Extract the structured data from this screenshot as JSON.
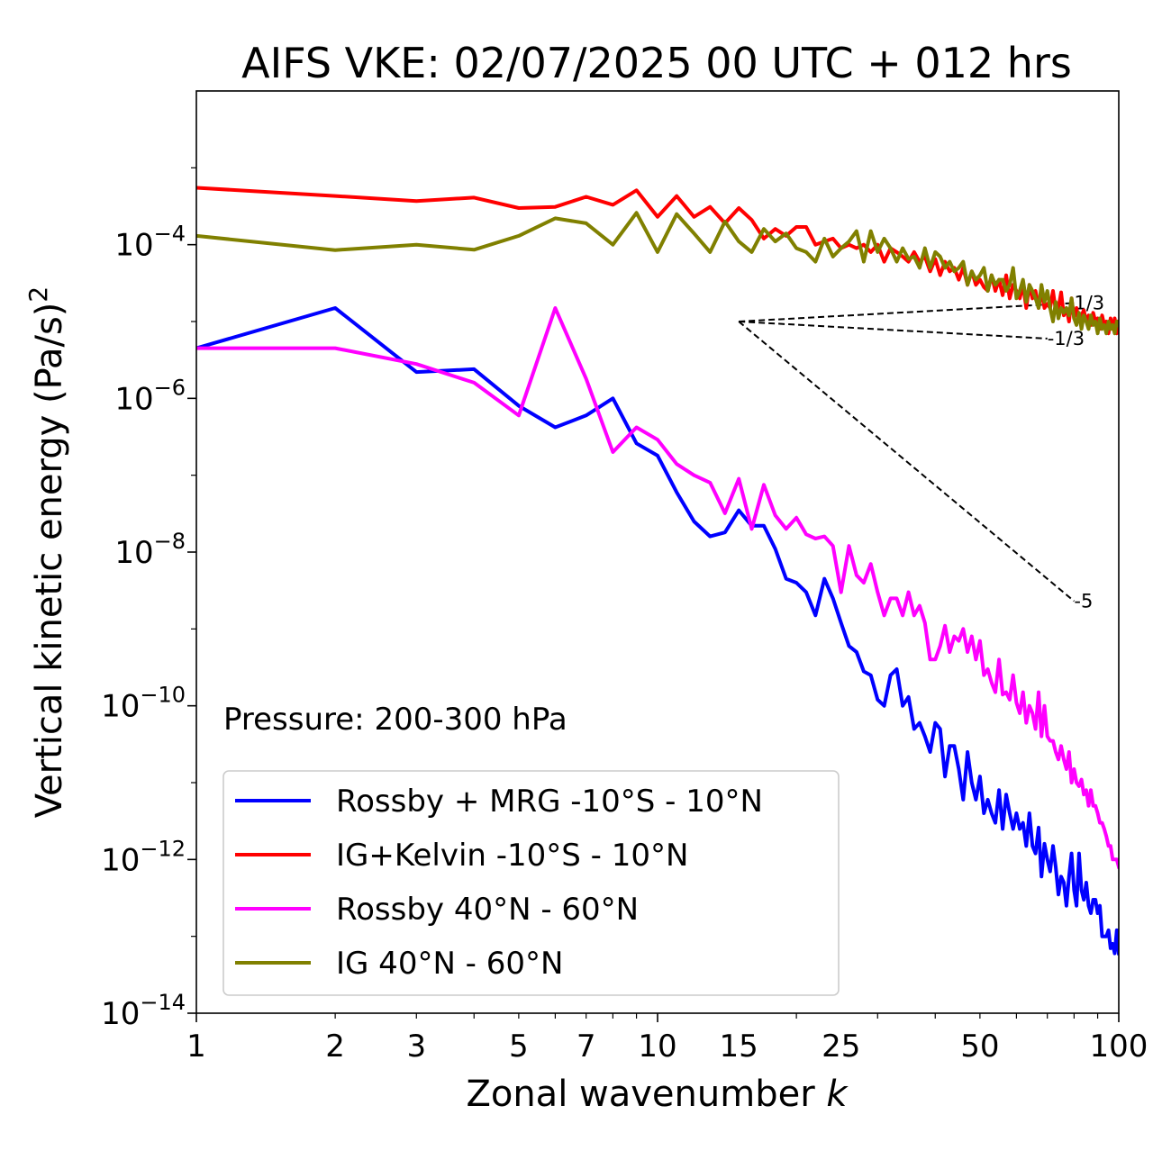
{
  "chart_data": {
    "type": "line",
    "title": "AIFS VKE: 02/07/2025 00 UTC + 012 hrs",
    "xlabel": "Zonal wavenumber k",
    "ylabel_main": "Vertical kinetic energy (Pa/s)",
    "ylabel_sup": "2",
    "xscale": "log",
    "yscale": "log",
    "xlim": [
      1,
      100
    ],
    "ylim": [
      1e-14,
      0.01
    ],
    "xticks": [
      {
        "value": 1,
        "label": "1"
      },
      {
        "value": 2,
        "label": "2"
      },
      {
        "value": 3,
        "label": "3"
      },
      {
        "value": 5,
        "label": "5"
      },
      {
        "value": 7,
        "label": "7"
      },
      {
        "value": 10,
        "label": "10"
      },
      {
        "value": 15,
        "label": "15"
      },
      {
        "value": 25,
        "label": "25"
      },
      {
        "value": 50,
        "label": "50"
      },
      {
        "value": 100,
        "label": "100"
      }
    ],
    "yticks": [
      {
        "value": 0.0001,
        "base": "10",
        "exp": "−4"
      },
      {
        "value": 1e-06,
        "base": "10",
        "exp": "−6"
      },
      {
        "value": 1e-08,
        "base": "10",
        "exp": "−8"
      },
      {
        "value": 1e-10,
        "base": "10",
        "exp": "−10"
      },
      {
        "value": 1e-12,
        "base": "10",
        "exp": "−12"
      },
      {
        "value": 1e-14,
        "base": "10",
        "exp": "−14"
      }
    ],
    "annotation": "Pressure: 200-300 hPa",
    "legend_position": "bottom-left",
    "reference_lines": [
      {
        "label": "1/3",
        "x": [
          15,
          80
        ],
        "y": [
          1e-05,
          1.74e-05
        ]
      },
      {
        "label": "-1/3",
        "x": [
          15,
          70
        ],
        "y": [
          1e-05,
          6e-06
        ]
      },
      {
        "label": "-5",
        "x": [
          15,
          80
        ],
        "y": [
          1e-05,
          2.3e-09
        ]
      }
    ],
    "series": [
      {
        "name": "Rossby + MRG -10°S - 10°N",
        "color": "#0000ff",
        "x": [
          1,
          2,
          3,
          4,
          5,
          6,
          7,
          8,
          9,
          10,
          11,
          12,
          13,
          14,
          15,
          16,
          17,
          18,
          19,
          20,
          21,
          22,
          23,
          24,
          25,
          26,
          27,
          28,
          29,
          30,
          31,
          32,
          33,
          34,
          35,
          36,
          37,
          38,
          39,
          40,
          41,
          42,
          43,
          44,
          45,
          46,
          47,
          48,
          49,
          50,
          51,
          52,
          53,
          54,
          55,
          56,
          57,
          58,
          59,
          60,
          61,
          62,
          63,
          64,
          65,
          66,
          67,
          68,
          69,
          70,
          71,
          72,
          73,
          74,
          75,
          76,
          77,
          78,
          79,
          80,
          81,
          82,
          83,
          84,
          85,
          86,
          87,
          88,
          89,
          90,
          91,
          92,
          93,
          94,
          95,
          96,
          97,
          98,
          99,
          100
        ],
        "values": [
          4.5e-06,
          1.5e-05,
          2.2e-06,
          2.4e-06,
          8e-07,
          4.2e-07,
          6e-07,
          1e-06,
          2.6e-07,
          1.8e-07,
          6e-08,
          2.5e-08,
          1.6e-08,
          1.8e-08,
          3.5e-08,
          2.2e-08,
          2.2e-08,
          1.1e-08,
          4.5e-09,
          4e-09,
          3e-09,
          1.5e-09,
          4.5e-09,
          2.5e-09,
          1.2e-09,
          6e-10,
          5e-10,
          2.8e-10,
          2.5e-10,
          1.2e-10,
          1e-10,
          2.5e-10,
          3e-10,
          1e-10,
          1.3e-10,
          5e-11,
          6e-11,
          4e-11,
          2.5e-11,
          6e-11,
          5e-11,
          1.2e-11,
          3e-11,
          3e-11,
          1.5e-11,
          6e-12,
          2.5e-11,
          1e-11,
          6e-12,
          1.2e-11,
          4e-12,
          6e-12,
          4e-12,
          3e-12,
          8e-12,
          2.5e-12,
          7e-12,
          4e-12,
          2.5e-12,
          4e-12,
          2.5e-12,
          3e-12,
          1.5e-12,
          4e-12,
          1.5e-12,
          1.2e-12,
          2.6e-12,
          6e-13,
          1.6e-12,
          1e-12,
          7e-13,
          1.5e-12,
          8e-13,
          3.5e-13,
          6e-13,
          5e-13,
          2.5e-13,
          6e-13,
          1.2e-12,
          4e-13,
          2.5e-13,
          1.2e-12,
          4e-13,
          3e-13,
          5e-13,
          2.5e-13,
          2e-13,
          3e-13,
          3e-13,
          2e-13,
          2.5e-13,
          1e-13,
          1e-13,
          1e-13,
          1.2e-13,
          7e-14,
          8e-14,
          6e-14,
          1.2e-13,
          6e-14
        ]
      },
      {
        "name": "IG+Kelvin -10°S - 10°N",
        "color": "#ff0000",
        "x": [
          1,
          2,
          3,
          4,
          5,
          6,
          7,
          8,
          9,
          10,
          11,
          12,
          13,
          14,
          15,
          16,
          17,
          18,
          19,
          20,
          21,
          22,
          23,
          24,
          25,
          26,
          27,
          28,
          29,
          30,
          31,
          32,
          33,
          34,
          35,
          36,
          37,
          38,
          39,
          40,
          41,
          42,
          43,
          44,
          45,
          46,
          47,
          48,
          49,
          50,
          51,
          52,
          53,
          54,
          55,
          56,
          57,
          58,
          59,
          60,
          61,
          62,
          63,
          64,
          65,
          66,
          67,
          68,
          69,
          70,
          71,
          72,
          73,
          74,
          75,
          76,
          77,
          78,
          79,
          80,
          81,
          82,
          83,
          84,
          85,
          86,
          87,
          88,
          89,
          90,
          91,
          92,
          93,
          94,
          95,
          96,
          97,
          98,
          99,
          100
        ],
        "values": [
          0.00055,
          0.00043,
          0.00037,
          0.00041,
          0.0003,
          0.00031,
          0.00042,
          0.00033,
          0.00051,
          0.00023,
          0.00043,
          0.00023,
          0.00031,
          0.00019,
          0.0003,
          0.00021,
          0.00012,
          0.00016,
          0.00013,
          0.00017,
          0.00017,
          0.0001,
          0.00011,
          0.00012,
          9e-05,
          0.0001,
          9e-05,
          0.0001,
          8e-05,
          0.0001,
          6e-05,
          9e-05,
          8e-05,
          7e-05,
          6e-05,
          8e-05,
          6e-05,
          7e-05,
          4.5e-05,
          6.5e-05,
          4e-05,
          6e-05,
          4.5e-05,
          5e-05,
          3.5e-05,
          5e-05,
          3e-05,
          4.5e-05,
          3e-05,
          3.5e-05,
          2.8e-05,
          2.5e-05,
          4e-05,
          2.5e-05,
          3.5e-05,
          2.2e-05,
          4e-05,
          2e-05,
          3e-05,
          2.5e-05,
          2e-05,
          3e-05,
          1.5e-05,
          3e-05,
          2e-05,
          2.5e-05,
          1.5e-05,
          2.5e-05,
          1.5e-05,
          1.7e-05,
          1.5e-05,
          2.5e-05,
          1.4e-05,
          1.5e-05,
          2.4e-05,
          1.2e-05,
          1.5e-05,
          1e-05,
          2e-05,
          1.1e-05,
          1.5e-05,
          1e-05,
          1.2e-05,
          1.4e-05,
          1e-05,
          1.2e-05,
          9e-06,
          1.3e-05,
          1e-05,
          1.1e-05,
          8e-06,
          1.2e-05,
          9e-06,
          1e-05,
          7e-06,
          1.1e-05,
          8e-06,
          1.1e-05,
          7e-06,
          1e-05
        ]
      },
      {
        "name": "Rossby 40°N - 60°N",
        "color": "#ff00ff",
        "x": [
          1,
          2,
          3,
          4,
          5,
          6,
          7,
          8,
          9,
          10,
          11,
          12,
          13,
          14,
          15,
          16,
          17,
          18,
          19,
          20,
          21,
          22,
          23,
          24,
          25,
          26,
          27,
          28,
          29,
          30,
          31,
          32,
          33,
          34,
          35,
          36,
          37,
          38,
          39,
          40,
          41,
          42,
          43,
          44,
          45,
          46,
          47,
          48,
          49,
          50,
          51,
          52,
          53,
          54,
          55,
          56,
          57,
          58,
          59,
          60,
          61,
          62,
          63,
          64,
          65,
          66,
          67,
          68,
          69,
          70,
          71,
          72,
          73,
          74,
          75,
          76,
          77,
          78,
          79,
          80,
          81,
          82,
          83,
          84,
          85,
          86,
          87,
          88,
          89,
          90,
          91,
          92,
          93,
          94,
          95,
          96,
          97,
          98,
          99,
          100
        ],
        "values": [
          4.5e-06,
          4.5e-06,
          2.8e-06,
          1.6e-06,
          6e-07,
          1.5e-05,
          1.8e-06,
          2e-07,
          4.2e-07,
          2.9e-07,
          1.4e-07,
          1e-07,
          8e-08,
          3.2e-08,
          9e-08,
          2e-08,
          7.5e-08,
          3e-08,
          2e-08,
          2.8e-08,
          1.7e-08,
          1.5e-08,
          1.6e-08,
          1.2e-08,
          3e-09,
          1.2e-08,
          5e-09,
          4e-09,
          7e-09,
          3e-09,
          1.5e-09,
          2.5e-09,
          2.5e-09,
          1.5e-09,
          3e-09,
          1.5e-09,
          2e-09,
          1.2e-09,
          4e-10,
          4e-10,
          6e-10,
          1.1e-09,
          5e-10,
          8e-10,
          7e-10,
          1e-09,
          5e-10,
          8e-10,
          4e-10,
          7e-10,
          2.5e-10,
          3e-10,
          2e-10,
          1.5e-10,
          4e-10,
          1.4e-10,
          1.5e-10,
          1.2e-10,
          2.5e-10,
          1.1e-10,
          8e-11,
          1.5e-10,
          6e-11,
          1e-10,
          8e-11,
          5e-11,
          1.5e-10,
          4e-11,
          1e-10,
          4e-11,
          3.5e-11,
          3.5e-11,
          2.5e-11,
          2e-11,
          3e-11,
          2e-11,
          1.5e-11,
          2.5e-11,
          1e-11,
          1.5e-11,
          1e-11,
          9e-12,
          1.1e-11,
          7e-12,
          8e-12,
          5e-12,
          8e-12,
          5e-12,
          5e-12,
          4e-12,
          3e-12,
          3e-12,
          2.5e-12,
          2e-12,
          1.5e-12,
          1.5e-12,
          1e-12,
          1e-12,
          1e-12,
          8e-13
        ]
      },
      {
        "name": "IG 40°N - 60°N",
        "color": "#808000",
        "x": [
          1,
          2,
          3,
          4,
          5,
          6,
          7,
          8,
          9,
          10,
          11,
          12,
          13,
          14,
          15,
          16,
          17,
          18,
          19,
          20,
          21,
          22,
          23,
          24,
          25,
          26,
          27,
          28,
          29,
          30,
          31,
          32,
          33,
          34,
          35,
          36,
          37,
          38,
          39,
          40,
          41,
          42,
          43,
          44,
          45,
          46,
          47,
          48,
          49,
          50,
          51,
          52,
          53,
          54,
          55,
          56,
          57,
          58,
          59,
          60,
          61,
          62,
          63,
          64,
          65,
          66,
          67,
          68,
          69,
          70,
          71,
          72,
          73,
          74,
          75,
          76,
          77,
          78,
          79,
          80,
          81,
          82,
          83,
          84,
          85,
          86,
          87,
          88,
          89,
          90,
          91,
          92,
          93,
          94,
          95,
          96,
          97,
          98,
          99,
          100
        ],
        "values": [
          0.00013,
          8.5e-05,
          0.0001,
          8.6e-05,
          0.00013,
          0.00022,
          0.00019,
          0.0001,
          0.00026,
          8e-05,
          0.00025,
          0.00014,
          8e-05,
          0.0002,
          0.00011,
          8e-05,
          0.00016,
          0.00011,
          0.00014,
          9e-05,
          8e-05,
          6e-05,
          0.00012,
          7e-05,
          9e-05,
          0.00011,
          0.00015,
          6e-05,
          0.00015,
          8e-05,
          0.00012,
          9e-05,
          6e-05,
          9e-05,
          6.5e-05,
          7e-05,
          5e-05,
          9e-05,
          5e-05,
          8e-05,
          7e-05,
          5e-05,
          6e-05,
          4.5e-05,
          5e-05,
          6e-05,
          3e-05,
          4.5e-05,
          3.5e-05,
          4e-05,
          5e-05,
          2.5e-05,
          4e-05,
          3e-05,
          3.5e-05,
          3.5e-05,
          2.5e-05,
          3e-05,
          5e-05,
          2e-05,
          2.5e-05,
          3.5e-05,
          1.8e-05,
          3e-05,
          2.5e-05,
          2e-05,
          1.5e-05,
          3e-05,
          1.8e-05,
          2.5e-05,
          1.5e-05,
          1e-05,
          1.8e-05,
          1.1e-05,
          1.5e-05,
          1.3e-05,
          1.5e-05,
          1.2e-05,
          2e-05,
          1.1e-05,
          9e-06,
          1.3e-05,
          8e-06,
          1.2e-05,
          1e-05,
          8e-06,
          1.2e-05,
          9e-06,
          1e-05,
          7e-06,
          1.1e-05,
          8e-06,
          9e-06,
          7e-06,
          1e-05,
          8e-06,
          9e-06,
          7e-06,
          1e-05,
          9e-06
        ]
      }
    ]
  }
}
